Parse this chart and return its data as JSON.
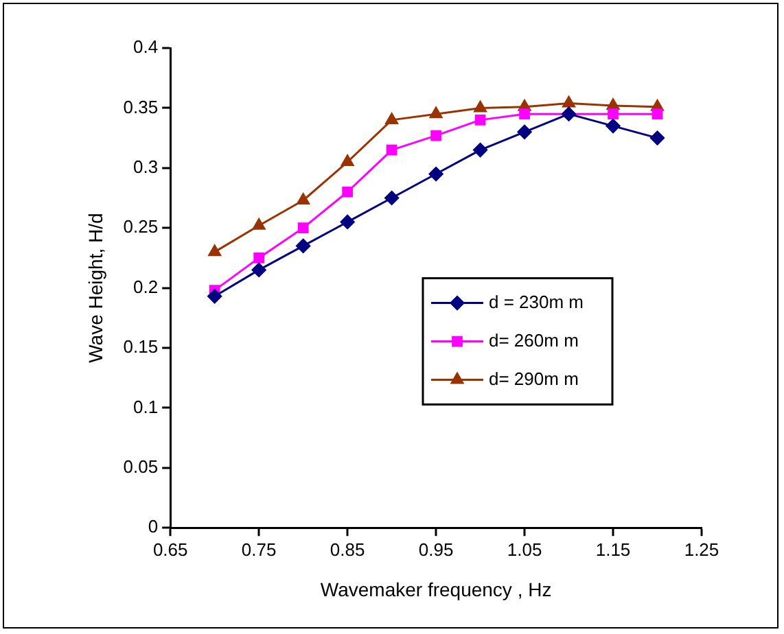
{
  "chart_data": {
    "type": "line",
    "xlabel": "Wavemaker frequency , Hz",
    "ylabel": "Wave Height, H/d",
    "x": [
      0.7,
      0.75,
      0.8,
      0.85,
      0.9,
      0.95,
      1.0,
      1.05,
      1.1,
      1.15,
      1.2
    ],
    "series": [
      {
        "name": "d = 230m m",
        "color": "#000080",
        "marker": "diamond",
        "values": [
          0.193,
          0.215,
          0.235,
          0.255,
          0.275,
          0.295,
          0.315,
          0.33,
          0.345,
          0.335,
          0.325
        ]
      },
      {
        "name": "d= 260m m",
        "color": "#ff00ff",
        "marker": "square",
        "values": [
          0.198,
          0.225,
          0.25,
          0.28,
          0.315,
          0.327,
          0.34,
          0.345,
          null,
          0.345,
          0.345
        ]
      },
      {
        "name": "d= 290m m",
        "color": "#993300",
        "marker": "triangle",
        "values": [
          0.23,
          0.252,
          0.273,
          0.305,
          0.34,
          0.345,
          0.35,
          0.351,
          0.354,
          0.352,
          0.351
        ]
      }
    ],
    "xlim": [
      0.65,
      1.25
    ],
    "xticks": [
      0.65,
      0.75,
      0.85,
      0.95,
      1.05,
      1.15,
      1.25
    ],
    "ylim": [
      0,
      0.4
    ],
    "yticks": [
      0,
      0.05,
      0.1,
      0.15,
      0.2,
      0.25,
      0.3,
      0.35,
      0.4
    ],
    "grid": false,
    "legend": "right"
  }
}
